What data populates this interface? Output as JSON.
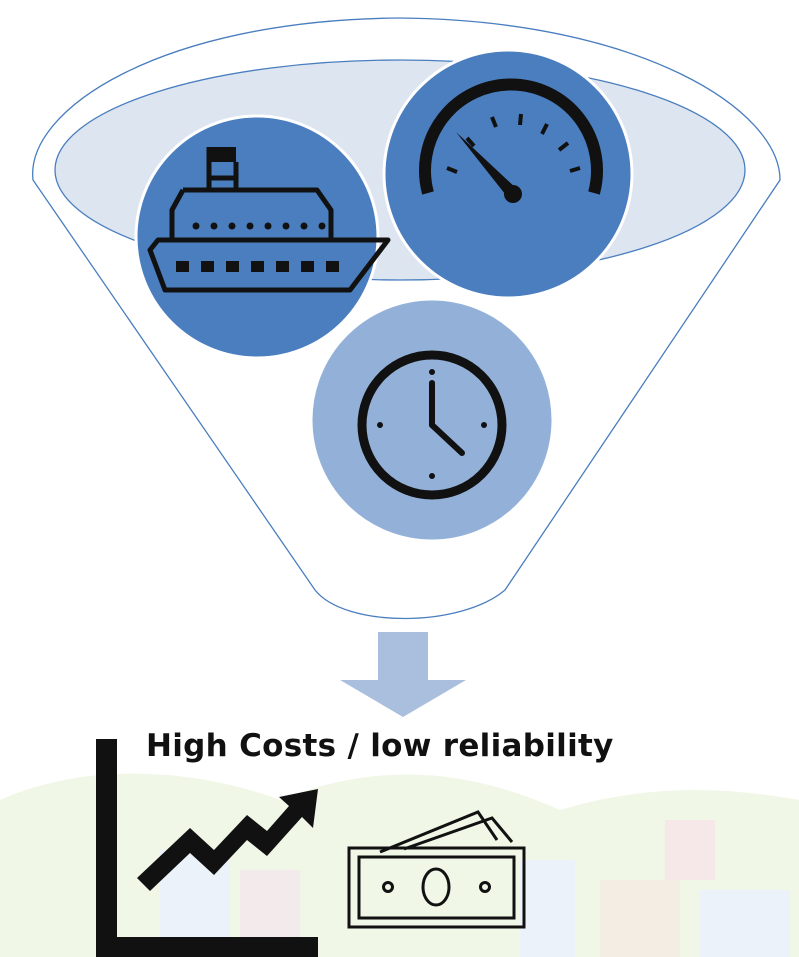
{
  "diagram": {
    "top_inputs": [
      {
        "icon": "ship-icon"
      },
      {
        "icon": "speedometer-icon"
      },
      {
        "icon": "clock-icon"
      }
    ],
    "arrow_icon": "arrow-down-icon",
    "outcome": {
      "label": "High Costs / low reliability",
      "icons": [
        "rising-trend-chart-icon",
        "money-banknotes-icon"
      ]
    }
  },
  "colors": {
    "funnel_fill": "#ffffff",
    "funnel_stroke": "#4a7ebf",
    "funnel_rim_fill": "#dde5f0",
    "circle_dark": "#4a7ebf",
    "circle_light": "#93b1d8",
    "arrow": "#aabfdd",
    "icon": "#111111",
    "background_pastel_green": "#e4f1d4",
    "background_pastel_blue": "#dbe8f5"
  }
}
